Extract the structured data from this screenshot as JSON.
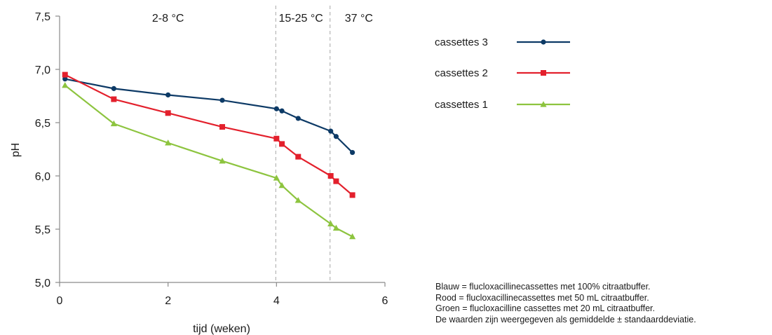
{
  "chart_data": {
    "type": "line",
    "xlabel": "tijd (weken)",
    "ylabel": "pH",
    "xlim": [
      0,
      6
    ],
    "ylim": [
      5.0,
      7.5
    ],
    "x_ticks": [
      0,
      2,
      4,
      6
    ],
    "x_tick_labels": [
      "0",
      "2",
      "4",
      "6"
    ],
    "y_ticks": [
      5.0,
      5.5,
      6.0,
      6.5,
      7.0,
      7.5
    ],
    "y_tick_labels": [
      "5,0",
      "5,5",
      "6,0",
      "6,5",
      "7,0",
      "7,5"
    ],
    "grid": false,
    "legend_position": "right",
    "region_dividers": [
      4,
      5
    ],
    "regions": [
      {
        "label": "2-8 °C",
        "x_center": 2.0
      },
      {
        "label": "15-25 °C",
        "x_center": 4.45
      },
      {
        "label": "37 °C",
        "x_center": 5.52
      }
    ],
    "series": [
      {
        "name": "cassettes 3",
        "color": "#0d3a66",
        "marker": "circle",
        "x": [
          0.1,
          1,
          2,
          3,
          4,
          4.1,
          4.4,
          5,
          5.1,
          5.4
        ],
        "y": [
          6.91,
          6.82,
          6.76,
          6.71,
          6.63,
          6.61,
          6.54,
          6.42,
          6.37,
          6.22
        ]
      },
      {
        "name": "cassettes 2",
        "color": "#e3202c",
        "marker": "square",
        "x": [
          0.1,
          1,
          2,
          3,
          4,
          4.1,
          4.4,
          5,
          5.1,
          5.4
        ],
        "y": [
          6.95,
          6.72,
          6.59,
          6.46,
          6.35,
          6.3,
          6.18,
          6.0,
          5.95,
          5.82
        ]
      },
      {
        "name": "cassettes 1",
        "color": "#8dc43f",
        "marker": "triangle",
        "x": [
          0.1,
          1,
          2,
          3,
          4,
          4.1,
          4.4,
          5,
          5.1,
          5.4
        ],
        "y": [
          6.85,
          6.49,
          6.31,
          6.14,
          5.98,
          5.91,
          5.77,
          5.55,
          5.51,
          5.43
        ]
      }
    ]
  },
  "notes": [
    "Blauw = flucloxacillinecassettes met 100% citraatbuffer.",
    "Rood = flucloxacillinecassettes met 50 mL citraatbuffer.",
    "Groen = flucloxacilline cassettes met 20 mL citraatbuffer.",
    "De waarden zijn weergegeven als gemiddelde ± standaarddeviatie."
  ]
}
